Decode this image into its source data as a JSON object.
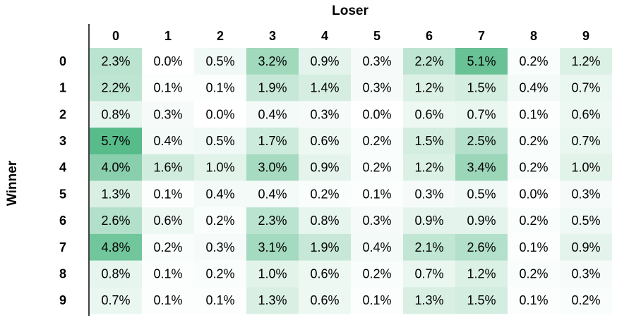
{
  "chart_data": {
    "type": "heatmap",
    "xlabel": "Loser",
    "ylabel": "Winner",
    "x_categories": [
      "0",
      "1",
      "2",
      "3",
      "4",
      "5",
      "6",
      "7",
      "8",
      "9"
    ],
    "y_categories": [
      "0",
      "1",
      "2",
      "3",
      "4",
      "5",
      "6",
      "7",
      "8",
      "9"
    ],
    "value_format": "percent",
    "color_scale": {
      "low": "#ffffff",
      "high": "#57bb8a"
    },
    "values": [
      [
        2.3,
        0.0,
        0.5,
        3.2,
        0.9,
        0.3,
        2.2,
        5.1,
        0.2,
        1.2
      ],
      [
        2.2,
        0.1,
        0.1,
        1.9,
        1.4,
        0.3,
        1.2,
        1.5,
        0.4,
        0.7
      ],
      [
        0.8,
        0.3,
        0.0,
        0.4,
        0.3,
        0.0,
        0.6,
        0.7,
        0.1,
        0.6
      ],
      [
        5.7,
        0.4,
        0.5,
        1.7,
        0.6,
        0.2,
        1.5,
        2.5,
        0.2,
        0.7
      ],
      [
        4.0,
        1.6,
        1.0,
        3.0,
        0.9,
        0.2,
        1.2,
        3.4,
        0.2,
        1.0
      ],
      [
        1.3,
        0.1,
        0.4,
        0.4,
        0.2,
        0.1,
        0.3,
        0.5,
        0.0,
        0.3
      ],
      [
        2.6,
        0.6,
        0.2,
        2.3,
        0.8,
        0.3,
        0.9,
        0.9,
        0.2,
        0.5
      ],
      [
        4.8,
        0.2,
        0.3,
        3.1,
        1.9,
        0.4,
        2.1,
        2.6,
        0.1,
        0.9
      ],
      [
        0.8,
        0.1,
        0.2,
        1.0,
        0.6,
        0.2,
        0.7,
        1.2,
        0.2,
        0.3
      ],
      [
        0.7,
        0.1,
        0.1,
        1.3,
        0.6,
        0.1,
        1.3,
        1.5,
        0.1,
        0.2
      ]
    ]
  }
}
